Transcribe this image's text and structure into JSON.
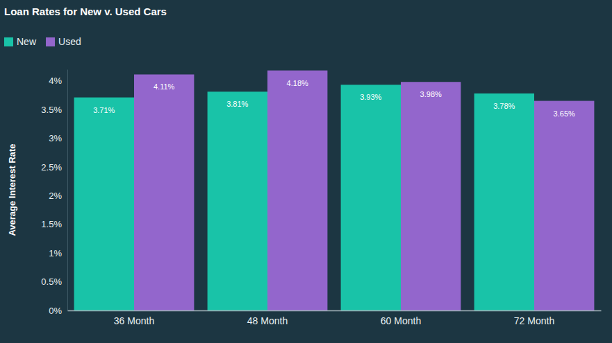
{
  "chart_data": {
    "type": "bar",
    "title": "Loan Rates for New v. Used Cars",
    "y_label": "Average Interest Rate",
    "categories": [
      "36 Month",
      "48 Month",
      "60 Month",
      "72 Month"
    ],
    "series": [
      {
        "name": "New",
        "color": "#19c3a8",
        "values": [
          3.71,
          3.81,
          3.93,
          3.78
        ],
        "value_labels": [
          "3.71%",
          "3.81%",
          "3.93%",
          "3.78%"
        ]
      },
      {
        "name": "Used",
        "color": "#9366cc",
        "values": [
          4.11,
          4.18,
          3.98,
          3.65
        ],
        "value_labels": [
          "4.11%",
          "4.18%",
          "3.98%",
          "3.65%"
        ]
      }
    ],
    "ylim": [
      0,
      4.2
    ],
    "yticks": [
      {
        "value": 0,
        "label": "0%"
      },
      {
        "value": 0.5,
        "label": "0.5%"
      },
      {
        "value": 1,
        "label": "1%"
      },
      {
        "value": 1.5,
        "label": "1.5%"
      },
      {
        "value": 2,
        "label": "2%"
      },
      {
        "value": 2.5,
        "label": "2.5%"
      },
      {
        "value": 3,
        "label": "3%"
      },
      {
        "value": 3.5,
        "label": "3.5%"
      },
      {
        "value": 4,
        "label": "4%"
      }
    ],
    "grid": false,
    "legend": "top-left",
    "data_labels": true
  }
}
